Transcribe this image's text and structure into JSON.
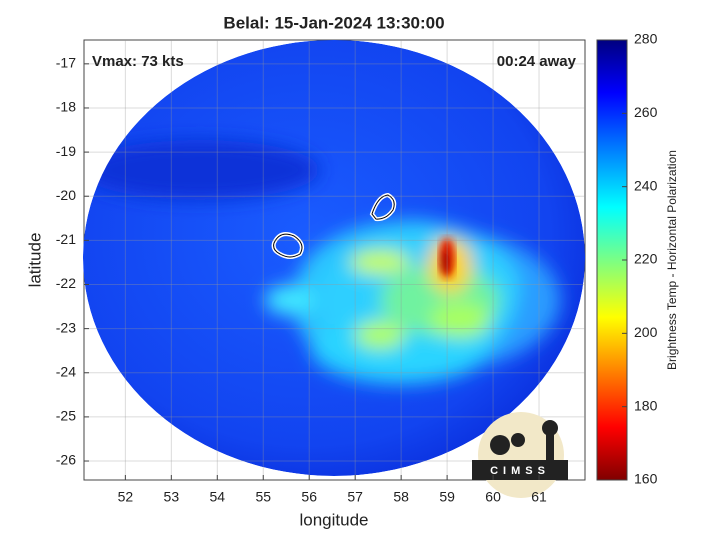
{
  "chart_data": {
    "type": "image",
    "title": "Belal: 15-Jan-2024 13:30:00",
    "xlabel": "longitude",
    "ylabel": "latitude",
    "xlim": [
      51.1,
      62
    ],
    "ylim": [
      -26.43,
      -16.46
    ],
    "xticks": [
      52,
      53,
      54,
      55,
      56,
      57,
      58,
      59,
      60,
      61
    ],
    "yticks": [
      -26,
      -25,
      -24,
      -23,
      -22,
      -21,
      -20,
      -19,
      -18,
      -17
    ],
    "grid": true,
    "annotations": [
      "Vmax: 73 kts",
      "00:24 away"
    ],
    "logo": "CIMSS",
    "colorbar": {
      "label": "Brightness Temp - Horizontal Polarization",
      "lim": [
        160,
        280
      ],
      "ticks": [
        160,
        180,
        200,
        220,
        240,
        260,
        280
      ]
    }
  }
}
